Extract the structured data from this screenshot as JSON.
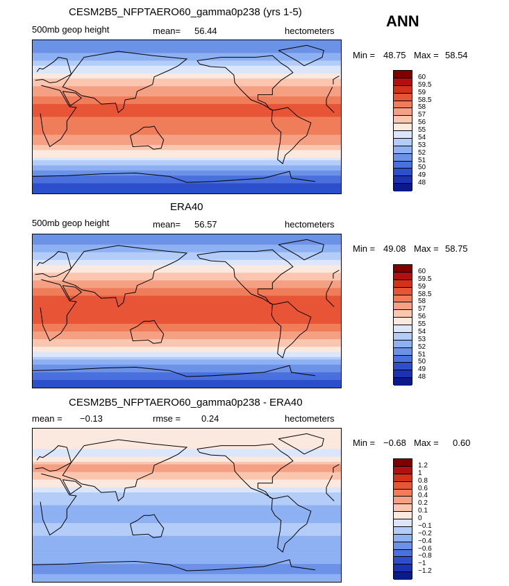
{
  "season": "ANN",
  "chart_data": [
    {
      "type": "heatmap",
      "title": "CESM2B5_NFPTAERO60_gamma0p238 (yrs 1-5)",
      "variable": "500mb geop height",
      "stat_label": "mean=",
      "stat_value": "56.44",
      "units": "hectometers",
      "min_label": "Min =",
      "min_value": "48.75",
      "max_label": "Max =",
      "max_value": "58.54",
      "legend_labels": [
        "60",
        "59.5",
        "59",
        "58.5",
        "58",
        "57",
        "56",
        "55",
        "54",
        "53",
        "52",
        "51",
        "50",
        "49",
        "48"
      ],
      "legend_colors": [
        "#800000",
        "#b01010",
        "#d2321a",
        "#e75536",
        "#f07d59",
        "#f6a083",
        "#fac6af",
        "#fbe9df",
        "#dbe6fb",
        "#b3cdf8",
        "#8db1f2",
        "#6c92e8",
        "#4a70dd",
        "#2d4fcc",
        "#1b32b2",
        "#0b1a8a"
      ],
      "zonal_profile": {
        "lat": [
          90,
          75,
          60,
          45,
          30,
          15,
          0,
          -15,
          -30,
          -45,
          -60,
          -75,
          -90
        ],
        "value": [
          50.9,
          52.0,
          53.8,
          55.9,
          57.7,
          58.5,
          58.5,
          58.3,
          57.4,
          55.3,
          52.3,
          50.2,
          49.1
        ]
      }
    },
    {
      "type": "heatmap",
      "title": "ERA40",
      "variable": "500mb geop height",
      "stat_label": "mean=",
      "stat_value": "56.57",
      "units": "hectometers",
      "min_label": "Min =",
      "min_value": "49.08",
      "max_label": "Max =",
      "max_value": "58.75",
      "legend_labels": [
        "60",
        "59.5",
        "59",
        "58.5",
        "58",
        "57",
        "56",
        "55",
        "54",
        "53",
        "52",
        "51",
        "50",
        "49",
        "48"
      ],
      "legend_colors": [
        "#800000",
        "#b01010",
        "#d2321a",
        "#e75536",
        "#f07d59",
        "#f6a083",
        "#fac6af",
        "#fbe9df",
        "#dbe6fb",
        "#b3cdf8",
        "#8db1f2",
        "#6c92e8",
        "#4a70dd",
        "#2d4fcc",
        "#1b32b2",
        "#0b1a8a"
      ],
      "zonal_profile": {
        "lat": [
          90,
          75,
          60,
          45,
          30,
          15,
          0,
          -15,
          -30,
          -45,
          -60,
          -75,
          -90
        ],
        "value": [
          51.1,
          52.2,
          54.0,
          56.0,
          57.9,
          58.7,
          58.7,
          58.5,
          57.6,
          55.5,
          52.5,
          50.5,
          49.3
        ]
      }
    },
    {
      "type": "heatmap",
      "title": "CESM2B5_NFPTAERO60_gamma0p238 - ERA40",
      "variable": "",
      "stat_label": "mean =",
      "stat_value": "−0.13",
      "stat2_label": "rmse =",
      "stat2_value": "0.24",
      "units": "hectometers",
      "min_label": "Min =",
      "min_value": "−0.68",
      "max_label": "Max =",
      "max_value": "0.60",
      "legend_labels": [
        "1.2",
        "1",
        "0.8",
        "0.6",
        "0.4",
        "0.2",
        "0.1",
        "0",
        "−0.1",
        "−0.2",
        "−0.4",
        "−0.6",
        "−0.8",
        "−1",
        "−1.2"
      ],
      "legend_colors": [
        "#800000",
        "#b01010",
        "#d2321a",
        "#e75536",
        "#f07d59",
        "#f6a083",
        "#fac6af",
        "#fbe9df",
        "#dbe6fb",
        "#b3cdf8",
        "#8db1f2",
        "#6c92e8",
        "#4a70dd",
        "#2d4fcc",
        "#1b32b2",
        "#0b1a8a"
      ],
      "zonal_profile": {
        "lat": [
          90,
          75,
          60,
          45,
          30,
          15,
          0,
          -15,
          -30,
          -45,
          -60,
          -75,
          -90
        ],
        "value": [
          0.05,
          0.05,
          -0.05,
          0.25,
          0.1,
          -0.1,
          -0.2,
          -0.3,
          -0.1,
          -0.35,
          -0.3,
          -0.45,
          -0.3
        ]
      }
    }
  ]
}
